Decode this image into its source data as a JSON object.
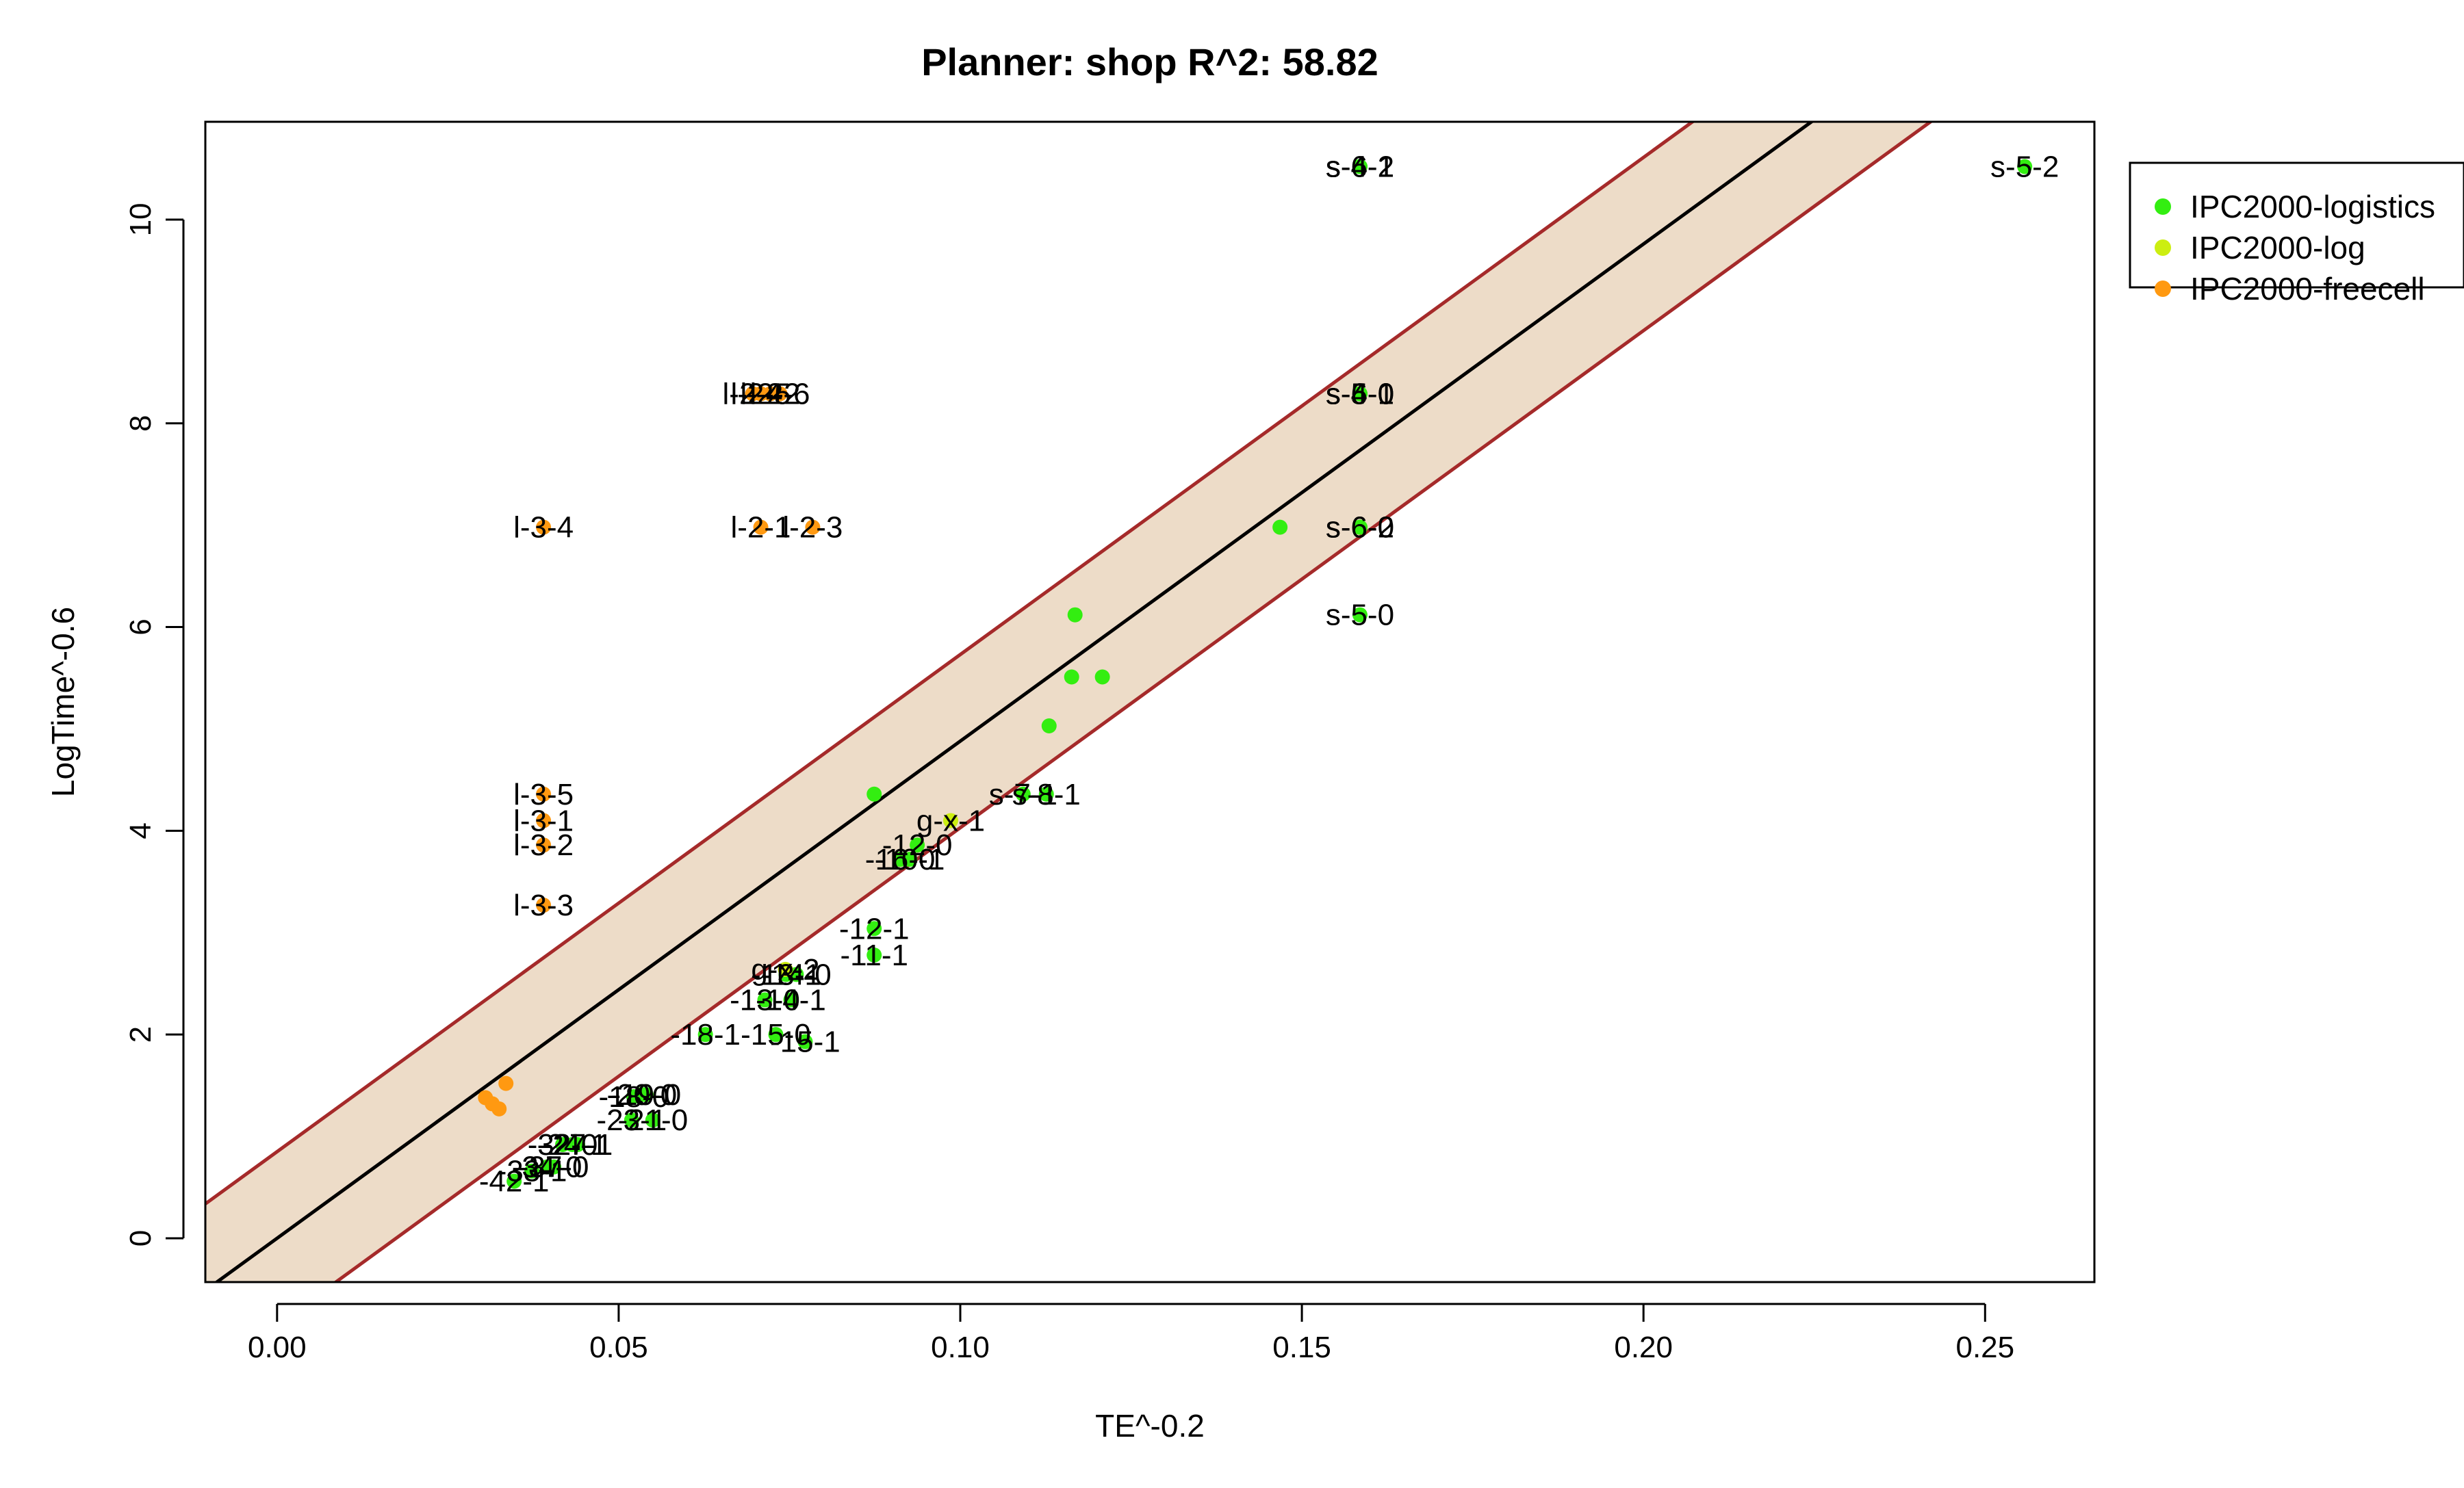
{
  "chart_data": {
    "type": "scatter",
    "title": "Planner: shop R^2: 58.82",
    "xlabel": "TE^-0.2",
    "ylabel": "LogTime^-0.6",
    "xlim": [
      -0.0105,
      0.266
    ],
    "ylim": [
      -0.43,
      10.96
    ],
    "x_ticks": [
      0.0,
      0.05,
      0.1,
      0.15,
      0.2,
      0.25
    ],
    "x_tick_labels": [
      "0.00",
      "0.05",
      "0.10",
      "0.15",
      "0.20",
      "0.25"
    ],
    "y_ticks": [
      0,
      2,
      4,
      6,
      8,
      10
    ],
    "y_tick_labels": [
      "0",
      "2",
      "4",
      "6",
      "8",
      "10"
    ],
    "grid": false,
    "legend_position": "outside-right-top",
    "fit": {
      "intercept": 0.0,
      "slope": 48.8,
      "band_halfwidth": 0.85,
      "line_color": "#000000",
      "band_fill": "#EDDCC8",
      "band_edge_color": "#A52A2A"
    },
    "series": [
      {
        "name": "IPC2000-logistics",
        "color": "#33EE11",
        "points": [
          {
            "x": 0.1585,
            "y": 10.52,
            "label": "s-4-1"
          },
          {
            "x": 0.1585,
            "y": 10.52,
            "label": "s-6-1"
          },
          {
            "x": 0.1585,
            "y": 10.52,
            "label": "s-4-2"
          },
          {
            "x": 0.2558,
            "y": 10.52,
            "label": "s-5-2"
          },
          {
            "x": 0.1585,
            "y": 8.29,
            "label": "s-4-0"
          },
          {
            "x": 0.1585,
            "y": 8.29,
            "label": "s-5-1"
          },
          {
            "x": 0.1585,
            "y": 8.29,
            "label": "s-6-0"
          },
          {
            "x": 0.1585,
            "y": 6.98,
            "label": "s-6-2"
          },
          {
            "x": 0.1585,
            "y": 6.98,
            "label": "s-6-0"
          },
          {
            "x": 0.1585,
            "y": 6.12,
            "label": "s-5-0"
          },
          {
            "x": 0.1468,
            "y": 6.98,
            "label": ""
          },
          {
            "x": 0.1168,
            "y": 6.12,
            "label": ""
          },
          {
            "x": 0.1163,
            "y": 5.51,
            "label": ""
          },
          {
            "x": 0.1208,
            "y": 5.51,
            "label": ""
          },
          {
            "x": 0.113,
            "y": 5.03,
            "label": ""
          },
          {
            "x": 0.0874,
            "y": 4.36,
            "label": ""
          },
          {
            "x": 0.1092,
            "y": 4.36,
            "label": "s-7-1"
          },
          {
            "x": 0.1126,
            "y": 4.36,
            "label": "s-8-1"
          },
          {
            "x": 0.0937,
            "y": 3.86,
            "label": "-12-0"
          },
          {
            "x": 0.0926,
            "y": 3.72,
            "label": "-10-1"
          },
          {
            "x": 0.0912,
            "y": 3.72,
            "label": "-16-0"
          },
          {
            "x": 0.0874,
            "y": 3.04,
            "label": "-12-1"
          },
          {
            "x": 0.0874,
            "y": 2.78,
            "label": "-11-1"
          },
          {
            "x": 0.076,
            "y": 2.59,
            "label": "-14-0"
          },
          {
            "x": 0.0745,
            "y": 2.59,
            "label": "-13-1"
          },
          {
            "x": 0.0752,
            "y": 2.34,
            "label": "-14-1"
          },
          {
            "x": 0.0714,
            "y": 2.34,
            "label": "-13-0"
          },
          {
            "x": 0.0627,
            "y": 2.0,
            "label": "-18-1"
          },
          {
            "x": 0.073,
            "y": 2.0,
            "label": "-15-0"
          },
          {
            "x": 0.0773,
            "y": 1.93,
            "label": "-15-1"
          },
          {
            "x": 0.054,
            "y": 1.41,
            "label": "-19-0"
          },
          {
            "x": 0.0534,
            "y": 1.41,
            "label": "-20-0"
          },
          {
            "x": 0.0522,
            "y": 1.39,
            "label": "-18-0"
          },
          {
            "x": 0.055,
            "y": 1.16,
            "label": "-21-0"
          },
          {
            "x": 0.0519,
            "y": 1.16,
            "label": "-23-1"
          },
          {
            "x": 0.044,
            "y": 0.92,
            "label": "-27-1"
          },
          {
            "x": 0.0432,
            "y": 0.92,
            "label": "-24-1"
          },
          {
            "x": 0.0418,
            "y": 0.92,
            "label": "-32-0"
          },
          {
            "x": 0.0405,
            "y": 0.7,
            "label": "-37-0"
          },
          {
            "x": 0.0395,
            "y": 0.7,
            "label": "-34-0"
          },
          {
            "x": 0.0373,
            "y": 0.66,
            "label": "-33-1"
          },
          {
            "x": 0.0347,
            "y": 0.56,
            "label": "-42-1"
          }
        ]
      },
      {
        "name": "IPC2000-log",
        "color": "#CCEE11",
        "points": [
          {
            "x": 0.0986,
            "y": 4.1,
            "label": "g-x-1"
          },
          {
            "x": 0.0744,
            "y": 2.64,
            "label": "g-x-2"
          }
        ]
      },
      {
        "name": "IPC2000-freecell",
        "color": "#FF9911",
        "points": [
          {
            "x": 0.0696,
            "y": 8.29,
            "label": "l-2-4"
          },
          {
            "x": 0.0708,
            "y": 8.29,
            "label": "l-2-5"
          },
          {
            "x": 0.0722,
            "y": 8.29,
            "label": "l-2-2"
          },
          {
            "x": 0.0736,
            "y": 8.29,
            "label": "l-2-6"
          },
          {
            "x": 0.039,
            "y": 6.98,
            "label": "l-3-4"
          },
          {
            "x": 0.0708,
            "y": 6.98,
            "label": "l-2-1"
          },
          {
            "x": 0.0784,
            "y": 6.98,
            "label": "l-2-3"
          },
          {
            "x": 0.039,
            "y": 4.36,
            "label": "l-3-5"
          },
          {
            "x": 0.039,
            "y": 4.1,
            "label": "l-3-1"
          },
          {
            "x": 0.039,
            "y": 3.86,
            "label": "l-3-2"
          },
          {
            "x": 0.039,
            "y": 3.27,
            "label": "l-3-3"
          },
          {
            "x": 0.0335,
            "y": 1.52,
            "label": ""
          },
          {
            "x": 0.0305,
            "y": 1.38,
            "label": ""
          },
          {
            "x": 0.0315,
            "y": 1.32,
            "label": ""
          },
          {
            "x": 0.0325,
            "y": 1.27,
            "label": ""
          }
        ]
      }
    ]
  }
}
